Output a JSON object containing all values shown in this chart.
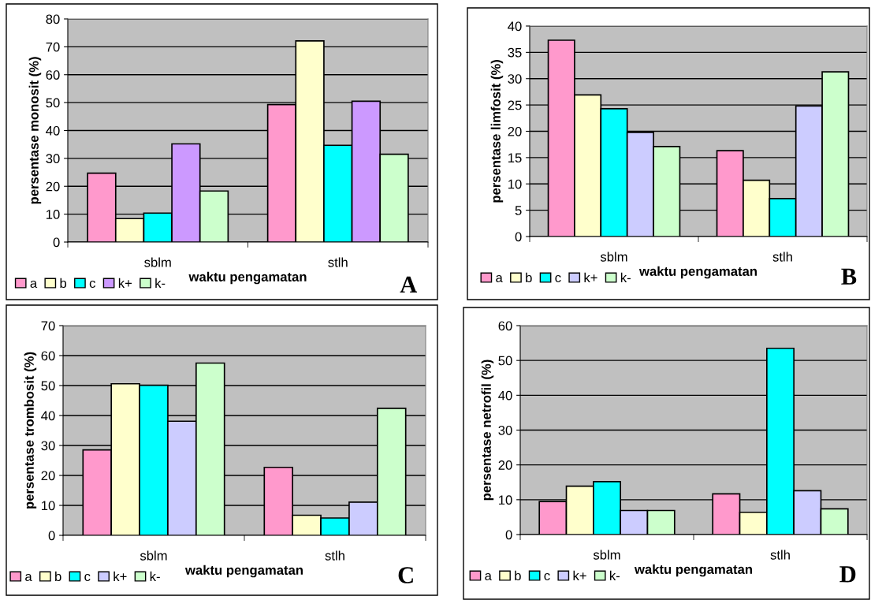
{
  "chart_data": [
    {
      "type": "bar",
      "categories": [
        "sblm",
        "stlh"
      ],
      "xlabel": "waktu pengamatan",
      "ylabel": "persentase monosit (%)",
      "ylim": [
        0,
        80
      ],
      "yticks": [
        0,
        10,
        20,
        30,
        40,
        50,
        60,
        70,
        80
      ],
      "grid": "y",
      "legend": "bottom left",
      "annotations": [
        "A"
      ],
      "series": [
        {
          "name": "a",
          "color": "#ff99cc",
          "values": [
            24.7,
            49.3
          ]
        },
        {
          "name": "b",
          "color": "#ffffcc",
          "values": [
            8.4,
            72.1
          ]
        },
        {
          "name": "c",
          "color": "#00ffff",
          "values": [
            10.4,
            34.7
          ]
        },
        {
          "name": "k+",
          "color": "#cc99ff",
          "values": [
            35.2,
            50.5
          ]
        },
        {
          "name": "k-",
          "color": "#ccffcc",
          "values": [
            18.3,
            31.5
          ]
        }
      ]
    },
    {
      "type": "bar",
      "categories": [
        "sblm",
        "stlh"
      ],
      "xlabel": "waktu pengamatan",
      "ylabel": "persentase limfosit (%)",
      "ylim": [
        0,
        40
      ],
      "yticks": [
        0,
        5,
        10,
        15,
        20,
        25,
        30,
        35,
        40
      ],
      "grid": "y",
      "legend": "bottom left",
      "annotations": [
        "B"
      ],
      "series": [
        {
          "name": "a",
          "color": "#ff99cc",
          "values": [
            37.3,
            16.3
          ]
        },
        {
          "name": "b",
          "color": "#ffffcc",
          "values": [
            26.9,
            10.7
          ]
        },
        {
          "name": "c",
          "color": "#00ffff",
          "values": [
            24.3,
            7.2
          ]
        },
        {
          "name": "k+",
          "color": "#ccccff",
          "values": [
            19.8,
            24.8
          ]
        },
        {
          "name": "k-",
          "color": "#ccffcc",
          "values": [
            17.1,
            31.3
          ]
        }
      ]
    },
    {
      "type": "bar",
      "categories": [
        "sblm",
        "stlh"
      ],
      "xlabel": "waktu pengamatan",
      "ylabel": "persentase trombosit (%)",
      "ylim": [
        0,
        70
      ],
      "yticks": [
        0,
        10,
        20,
        30,
        40,
        50,
        60,
        70
      ],
      "grid": "y",
      "legend": "bottom left",
      "annotations": [
        "C"
      ],
      "series": [
        {
          "name": "a",
          "color": "#ff99cc",
          "values": [
            28.5,
            22.7
          ]
        },
        {
          "name": "b",
          "color": "#ffffcc",
          "values": [
            50.6,
            6.7
          ]
        },
        {
          "name": "c",
          "color": "#00ffff",
          "values": [
            50.1,
            5.8
          ]
        },
        {
          "name": "k+",
          "color": "#ccccff",
          "values": [
            38.1,
            11.1
          ]
        },
        {
          "name": "k-",
          "color": "#ccffcc",
          "values": [
            57.5,
            42.4
          ]
        }
      ]
    },
    {
      "type": "bar",
      "categories": [
        "sblm",
        "stlh"
      ],
      "xlabel": "waktu pengamatan",
      "ylabel": "persentase netrofil (%)",
      "ylim": [
        0,
        60
      ],
      "yticks": [
        0,
        10,
        20,
        30,
        40,
        50,
        60
      ],
      "grid": "y",
      "legend": "bottom left",
      "annotations": [
        "D"
      ],
      "series": [
        {
          "name": "a",
          "color": "#ff99cc",
          "values": [
            9.5,
            11.7
          ]
        },
        {
          "name": "b",
          "color": "#ffffcc",
          "values": [
            13.9,
            6.4
          ]
        },
        {
          "name": "c",
          "color": "#00ffff",
          "values": [
            15.2,
            53.5
          ]
        },
        {
          "name": "k+",
          "color": "#ccccff",
          "values": [
            6.9,
            12.6
          ]
        },
        {
          "name": "k-",
          "color": "#ccffcc",
          "values": [
            6.9,
            7.4
          ]
        }
      ]
    }
  ]
}
